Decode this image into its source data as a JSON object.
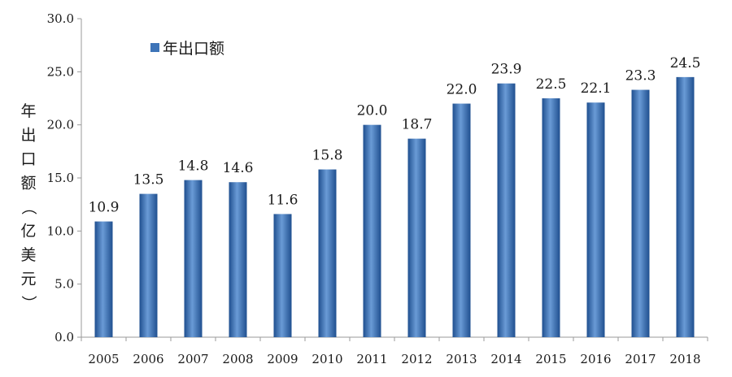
{
  "chart_data": {
    "type": "bar",
    "categories": [
      "2005",
      "2006",
      "2007",
      "2008",
      "2009",
      "2010",
      "2011",
      "2012",
      "2013",
      "2014",
      "2015",
      "2016",
      "2017",
      "2018"
    ],
    "series": [
      {
        "name": "年出口额",
        "values": [
          10.9,
          13.5,
          14.8,
          14.6,
          11.6,
          15.8,
          20.0,
          18.7,
          22.0,
          23.9,
          22.5,
          22.1,
          23.3,
          24.5
        ]
      }
    ],
    "data_labels": [
      "10.9",
      "13.5",
      "14.8",
      "14.6",
      "11.6",
      "15.8",
      "20.0",
      "18.7",
      "22.0",
      "23.9",
      "22.5",
      "22.1",
      "23.3",
      "24.5"
    ],
    "ylabel": "年出口额（亿美元）",
    "y_ticks": [
      "0.0",
      "5.0",
      "10.0",
      "15.0",
      "20.0",
      "25.0",
      "30.0"
    ],
    "ylim": [
      0,
      30
    ],
    "grid": false,
    "legend_position": "top-left",
    "colors": {
      "bar": "#3e74b8",
      "bar_light": "#6a9bd6",
      "bar_dark": "#1f4f8f",
      "axis": "#9a9a9a"
    }
  }
}
